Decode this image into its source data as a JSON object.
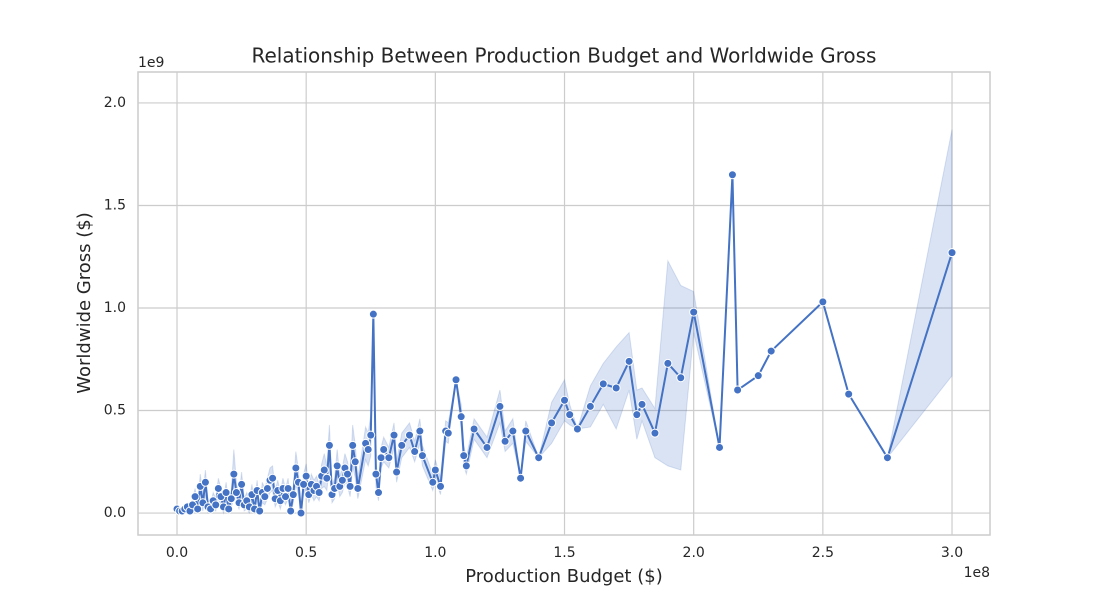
{
  "chart_data": {
    "type": "line",
    "title": "Relationship Between Production Budget and Worldwide Gross",
    "x_label": "Production Budget ($)",
    "y_label": "Worldwide Gross ($)",
    "x_offset": "1e8",
    "y_offset": "1e9",
    "color": "#4472c4",
    "grid": true,
    "xlim": [
      -0.151,
      3.147
    ],
    "ylim": [
      -0.107,
      2.151
    ],
    "xticks": [
      {
        "value": 0,
        "label": "0.0"
      },
      0.5,
      {
        "value": 1,
        "label": "1.0"
      },
      1.5,
      {
        "value": 2,
        "label": "2.0"
      },
      2.5,
      {
        "value": 3,
        "label": "3.0"
      }
    ],
    "yticks": [
      {
        "value": 0,
        "label": "0.0"
      },
      0.5,
      {
        "value": 1,
        "label": "1.0"
      },
      1.5,
      {
        "value": 2,
        "label": "2.0"
      }
    ],
    "x": [
      0,
      0.01,
      0.02,
      0.03,
      0.04,
      0.05,
      0.06,
      0.07,
      0.08,
      0.09,
      0.1,
      0.11,
      0.12,
      0.13,
      0.14,
      0.15,
      0.16,
      0.17,
      0.18,
      0.19,
      0.2,
      0.21,
      0.22,
      0.23,
      0.24,
      0.25,
      0.26,
      0.27,
      0.28,
      0.29,
      0.3,
      0.31,
      0.32,
      0.33,
      0.34,
      0.35,
      0.36,
      0.37,
      0.38,
      0.39,
      0.4,
      0.41,
      0.42,
      0.43,
      0.44,
      0.45,
      0.46,
      0.47,
      0.48,
      0.49,
      0.5,
      0.51,
      0.52,
      0.53,
      0.54,
      0.55,
      0.56,
      0.57,
      0.58,
      0.59,
      0.6,
      0.61,
      0.62,
      0.63,
      0.64,
      0.65,
      0.66,
      0.67,
      0.68,
      0.69,
      0.7,
      0.73,
      0.74,
      0.75,
      0.76,
      0.77,
      0.78,
      0.79,
      0.8,
      0.82,
      0.84,
      0.85,
      0.87,
      0.9,
      0.92,
      0.94,
      0.95,
      0.99,
      1.0,
      1.02,
      1.04,
      1.05,
      1.08,
      1.1,
      1.11,
      1.12,
      1.15,
      1.2,
      1.25,
      1.27,
      1.3,
      1.33,
      1.35,
      1.4,
      1.45,
      1.5,
      1.52,
      1.55,
      1.6,
      1.65,
      1.7,
      1.75,
      1.78,
      1.8,
      1.85,
      1.9,
      1.95,
      2.0,
      2.1,
      2.15,
      2.17,
      2.25,
      2.3,
      2.5,
      2.6,
      2.75,
      3.0
    ],
    "y": [
      0.02,
      0.01,
      0.01,
      0.02,
      0.03,
      0.01,
      0.04,
      0.08,
      0.02,
      0.13,
      0.05,
      0.15,
      0.03,
      0.02,
      0.06,
      0.04,
      0.12,
      0.08,
      0.03,
      0.1,
      0.02,
      0.07,
      0.19,
      0.1,
      0.05,
      0.14,
      0.04,
      0.06,
      0.03,
      0.09,
      0.02,
      0.11,
      0.01,
      0.1,
      0.08,
      0.12,
      0.16,
      0.17,
      0.07,
      0.11,
      0.06,
      0.12,
      0.08,
      0.12,
      0.01,
      0.09,
      0.22,
      0.15,
      0.0,
      0.14,
      0.18,
      0.09,
      0.14,
      0.11,
      0.13,
      0.1,
      0.18,
      0.21,
      0.17,
      0.33,
      0.09,
      0.12,
      0.23,
      0.13,
      0.16,
      0.22,
      0.19,
      0.13,
      0.33,
      0.25,
      0.12,
      0.34,
      0.31,
      0.38,
      0.97,
      0.19,
      0.1,
      0.27,
      0.31,
      0.27,
      0.38,
      0.2,
      0.33,
      0.38,
      0.3,
      0.4,
      0.28,
      0.15,
      0.21,
      0.13,
      0.4,
      0.39,
      0.65,
      0.47,
      0.28,
      0.23,
      0.41,
      0.32,
      0.52,
      0.35,
      0.4,
      0.17,
      0.4,
      0.27,
      0.44,
      0.55,
      0.48,
      0.41,
      0.52,
      0.63,
      0.61,
      0.74,
      0.48,
      0.53,
      0.39,
      0.73,
      0.66,
      0.98,
      0.32,
      1.65,
      0.6,
      0.67,
      0.79,
      1.03,
      0.58,
      0.27,
      1.27
    ],
    "error": [
      0.01,
      0.01,
      0.01,
      0.02,
      0.02,
      0.01,
      0.03,
      0.04,
      0.02,
      0.06,
      0.04,
      0.06,
      0.03,
      0.02,
      0.04,
      0.03,
      0.05,
      0.04,
      0.03,
      0.05,
      0.02,
      0.04,
      0.12,
      0.05,
      0.03,
      0.06,
      0.03,
      0.04,
      0.03,
      0.05,
      0.02,
      0.05,
      0.01,
      0.05,
      0.04,
      0.05,
      0.06,
      0.06,
      0.04,
      0.05,
      0.04,
      0.05,
      0.04,
      0.05,
      0.01,
      0.04,
      0.08,
      0.06,
      0,
      0.05,
      0.06,
      0.04,
      0.05,
      0.05,
      0.05,
      0.04,
      0.06,
      0.08,
      0.06,
      0.1,
      0.04,
      0.05,
      0.08,
      0.05,
      0.06,
      0.07,
      0.06,
      0.05,
      0.1,
      0.08,
      0.05,
      0.08,
      0.08,
      0.1,
      0,
      0.06,
      0.04,
      0.05,
      0.06,
      0.05,
      0.06,
      0.05,
      0.06,
      0.06,
      0.05,
      0.06,
      0.05,
      0.04,
      0.05,
      0.04,
      0.05,
      0.05,
      0,
      0.06,
      0.05,
      0.04,
      0.05,
      0.05,
      0.08,
      0.05,
      0.06,
      0,
      0.05,
      0,
      0.1,
      0.1,
      0.05,
      0,
      0.1,
      0.1,
      0.2,
      0.14,
      0.12,
      0.08,
      0.12,
      0.5,
      0.45,
      0.1,
      0,
      0,
      0,
      0,
      0,
      0,
      0,
      0,
      0.6
    ]
  }
}
